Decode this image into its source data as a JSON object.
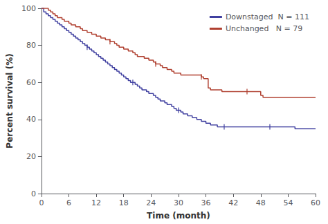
{
  "chart_data": {
    "type": "step",
    "xlabel": "Time (month)",
    "ylabel": "Percent survival (%)",
    "xlim": [
      0,
      60
    ],
    "ylim": [
      0,
      100
    ],
    "xticks": [
      0,
      6,
      12,
      18,
      24,
      30,
      36,
      42,
      48,
      54,
      60
    ],
    "yticks": [
      0,
      20,
      40,
      60,
      80,
      100
    ],
    "grid": false,
    "legend": "upper right",
    "x": [
      0,
      0.5,
      1,
      1.5,
      2,
      2.5,
      3,
      3.5,
      4,
      4.5,
      5,
      5.5,
      6,
      6.5,
      7,
      7.5,
      8,
      8.5,
      9,
      9.5,
      10,
      10.5,
      11,
      11.5,
      12,
      12.5,
      13,
      13.5,
      14,
      14.5,
      15,
      15.5,
      16,
      16.5,
      17,
      17.5,
      18,
      18.5,
      19,
      19.5,
      20,
      20.5,
      21,
      21.5,
      22,
      22.5,
      23,
      23.5,
      24,
      24.5,
      25,
      25.5,
      26,
      26.5,
      27,
      27.5,
      28,
      28.5,
      29,
      29.5,
      30,
      30.5,
      31,
      31.5,
      32,
      32.5,
      33,
      33.5,
      34,
      34.5,
      35,
      35.5,
      36,
      36.5,
      37,
      37.5,
      38,
      38.5,
      39,
      39.5,
      40,
      40.5,
      41,
      41.5,
      42,
      42.5,
      43,
      43.5,
      44,
      44.5,
      45,
      45.5,
      46,
      46.5,
      47,
      47.5,
      48,
      48.5,
      49,
      49.5,
      50,
      50.5,
      51,
      51.5,
      52,
      52.5,
      53,
      53.5,
      54,
      54.5,
      55,
      55.5,
      56,
      56.5,
      57,
      57.5,
      58,
      58.5,
      59,
      59.5,
      60
    ],
    "series": [
      {
        "name": "Downstaged  N = 111",
        "color": "#4040a0",
        "values": [
          100,
          98,
          97,
          96,
          95,
          94,
          93,
          92,
          91,
          90,
          89,
          88,
          87,
          86,
          85,
          84,
          83,
          82,
          81,
          80,
          79,
          78,
          77,
          76,
          75,
          74,
          73,
          72,
          71,
          70,
          69,
          68,
          67,
          66,
          65,
          64,
          63,
          62,
          61,
          60,
          60,
          59,
          58,
          57,
          56,
          56,
          55,
          54,
          54,
          53,
          52,
          51,
          50,
          50,
          49,
          48,
          48,
          47,
          46,
          45,
          45,
          44,
          43,
          43,
          42,
          42,
          41,
          41,
          40,
          40,
          39,
          39,
          38,
          38,
          37,
          37,
          37,
          36,
          36,
          36,
          36,
          36,
          36,
          36,
          36,
          36,
          36,
          36,
          36,
          36,
          36,
          36,
          36,
          36,
          36,
          36,
          36,
          36,
          36,
          36,
          36,
          36,
          36,
          36,
          36,
          36,
          36,
          36,
          36,
          36,
          36,
          35,
          35,
          35,
          35,
          35,
          35,
          35,
          35,
          35,
          35
        ],
        "censors": {
          "x": [
            10,
            20,
            30,
            40,
            50
          ],
          "values": [
            79,
            60,
            45,
            36,
            36
          ]
        }
      },
      {
        "name": "Unchanged   N = 79",
        "color": "#b04030",
        "values": [
          100,
          100,
          100,
          99,
          98,
          97,
          96,
          95,
          95,
          94,
          93,
          93,
          92,
          91,
          91,
          90,
          90,
          89,
          88,
          88,
          87,
          87,
          86,
          86,
          85,
          85,
          84,
          84,
          83,
          83,
          82,
          82,
          81,
          80,
          79,
          79,
          78,
          78,
          77,
          77,
          76,
          75,
          74,
          74,
          74,
          73,
          73,
          72,
          72,
          71,
          70,
          70,
          69,
          68,
          68,
          67,
          67,
          66,
          65,
          65,
          65,
          64,
          64,
          64,
          64,
          64,
          64,
          64,
          64,
          64,
          63,
          62,
          62,
          57,
          56,
          56,
          56,
          56,
          56,
          55,
          55,
          55,
          55,
          55,
          55,
          55,
          55,
          55,
          55,
          55,
          55,
          55,
          55,
          55,
          55,
          55,
          53,
          52,
          52,
          52,
          52,
          52,
          52,
          52,
          52,
          52,
          52,
          52,
          52,
          52,
          52,
          52,
          52,
          52,
          52,
          52,
          52,
          52,
          52,
          52,
          52
        ],
        "censors": {
          "x": [
            15,
            25,
            35,
            45
          ],
          "values": [
            82,
            70,
            63,
            55
          ]
        }
      }
    ]
  }
}
